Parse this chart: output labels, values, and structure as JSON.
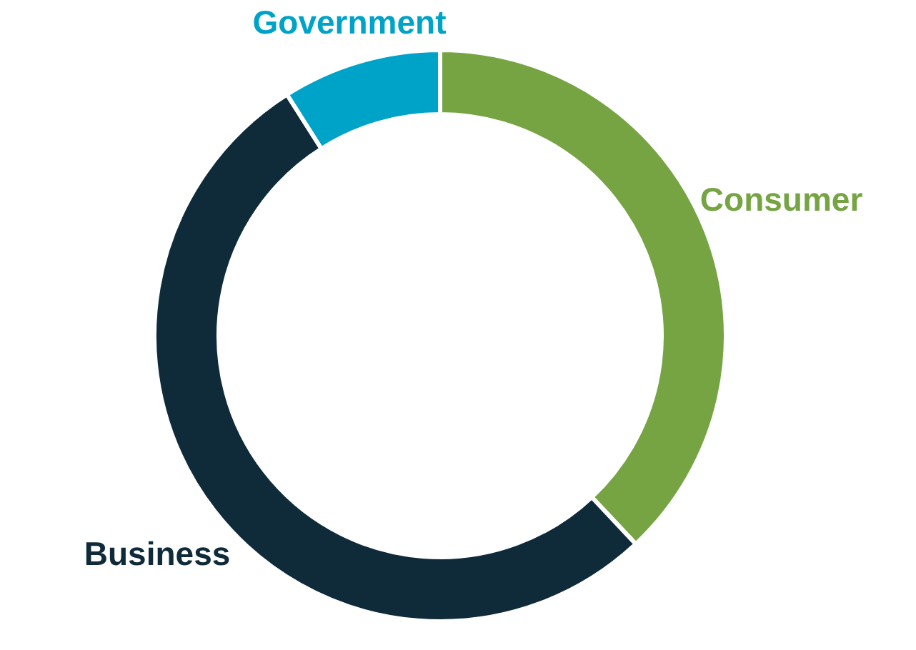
{
  "chart_data": {
    "type": "donut",
    "categories": [
      "Consumer",
      "Business",
      "Government"
    ],
    "values": [
      38,
      53,
      9
    ],
    "colors": [
      "#76a443",
      "#0f2b3a",
      "#00a3c8"
    ]
  }
}
